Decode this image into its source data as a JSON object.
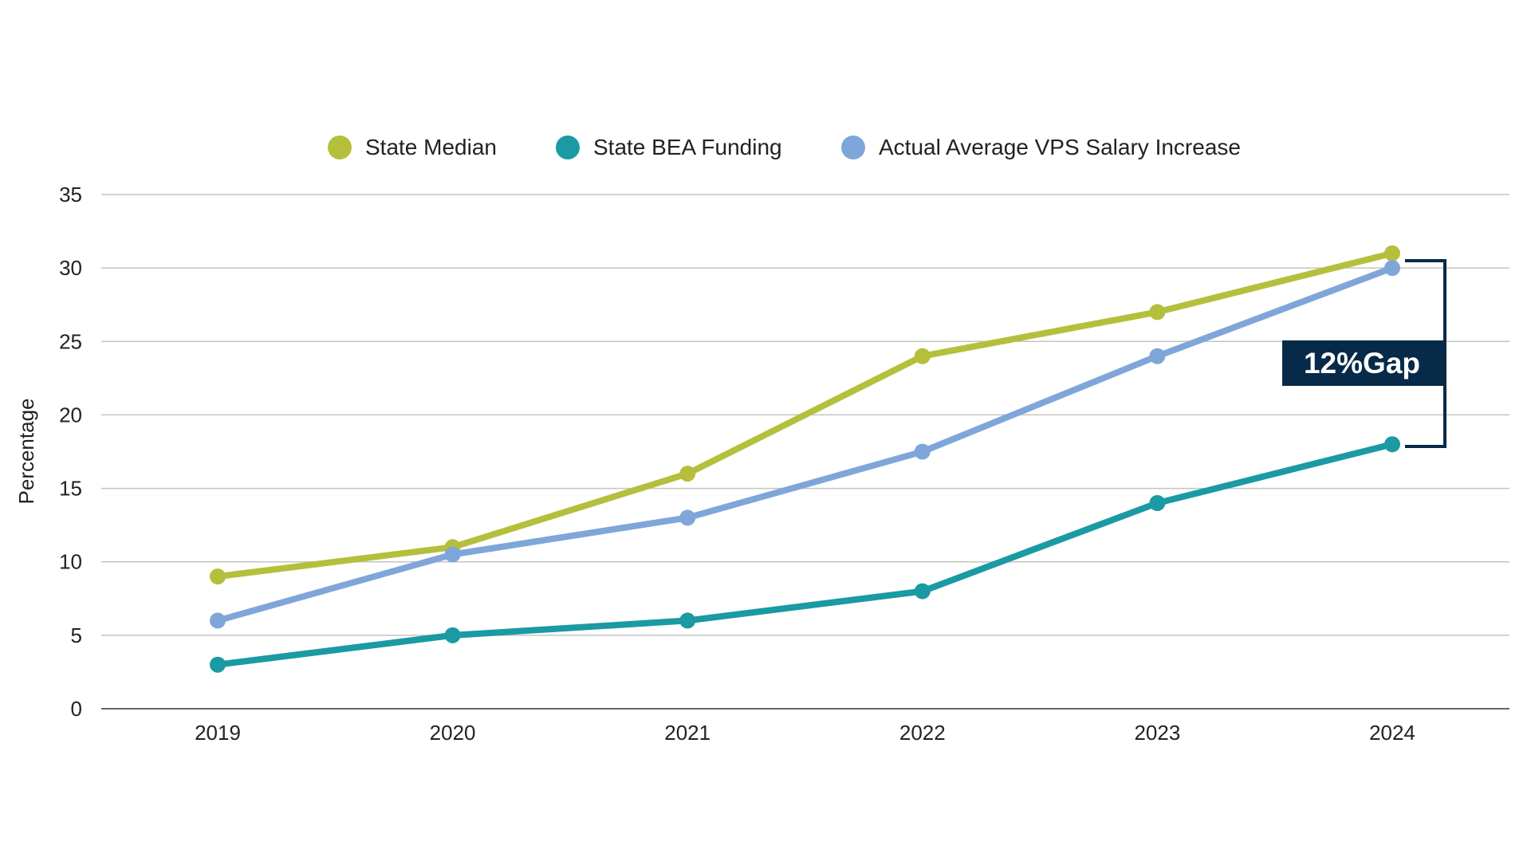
{
  "chart_data": {
    "type": "line",
    "title": "",
    "xlabel": "",
    "ylabel": "Percentage",
    "categories": [
      "2019",
      "2020",
      "2021",
      "2022",
      "2023",
      "2024"
    ],
    "ylim": [
      0,
      35
    ],
    "yticks": [
      0,
      5,
      10,
      15,
      20,
      25,
      30,
      35
    ],
    "grid": true,
    "legend_position": "top",
    "series": [
      {
        "name": "State Median",
        "color": "#b5bf3c",
        "values": [
          9,
          11,
          16,
          24,
          27,
          31
        ]
      },
      {
        "name": "State BEA Funding",
        "color": "#1a9aa2",
        "values": [
          3,
          5,
          6,
          8,
          14,
          18
        ]
      },
      {
        "name": "Actual Average VPS Salary Increase",
        "color": "#7fa6d9",
        "values": [
          6,
          10.5,
          13,
          17.5,
          24,
          30
        ]
      }
    ],
    "annotation": {
      "text": "12%Gap",
      "color": "#062a47"
    }
  }
}
